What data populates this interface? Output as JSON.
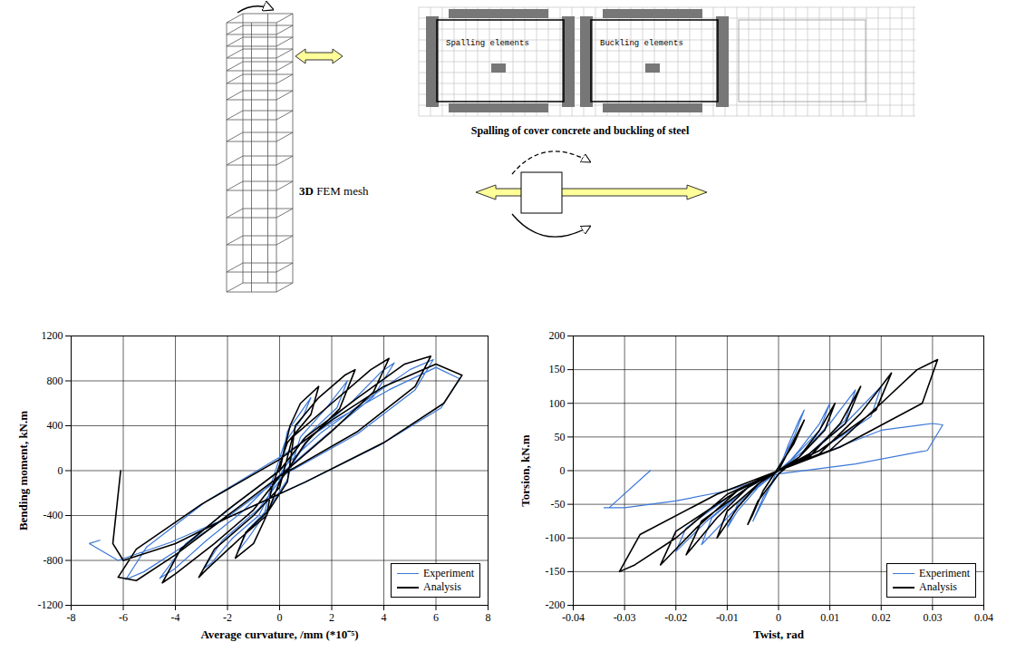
{
  "diagram": {
    "mesh_label": "3D FEM mesh",
    "section": {
      "caption": "Spalling of cover concrete and buckling of steel",
      "labels": [
        "Spalling elements",
        "Buckling elements"
      ]
    }
  },
  "chart_data": [
    {
      "type": "line",
      "xlabel": "Average curvature, /mm (*10⁻⁵)",
      "ylabel": "Bending moment, kN.m",
      "xlim": [
        -8,
        8
      ],
      "ylim": [
        -1200,
        1200
      ],
      "xticks": [
        -8,
        -6,
        -4,
        -2,
        0,
        2,
        4,
        6,
        8
      ],
      "yticks": [
        -1200,
        -800,
        -400,
        0,
        400,
        800,
        1200
      ],
      "grid": true,
      "legend": "lower right",
      "series": [
        {
          "name": "Experiment",
          "color": "#3c78d8",
          "x": [
            0,
            0.3,
            0.6,
            1.2,
            0.9,
            0.2,
            -0.3,
            -0.6,
            -1.2,
            -1.6,
            -1.2,
            -0.4,
            0.3,
            0.8,
            1.8,
            2.6,
            2.2,
            0.9,
            -0.1,
            -0.8,
            -1.8,
            -2.6,
            -2.9,
            -2.2,
            -0.8,
            0.2,
            1.2,
            2.8,
            3.9,
            4.4,
            3.6,
            1.8,
            -0.1,
            -1.4,
            -2.8,
            -4,
            -4.6,
            -3.6,
            -1.8,
            0.1,
            1.6,
            3.4,
            5,
            5.9,
            5.2,
            3,
            0.3,
            -1.8,
            -3.6,
            -5.2,
            -5.9,
            -5.1,
            -2.8,
            0,
            2,
            4.2,
            6,
            6.9,
            6.2,
            3.8,
            1,
            -2,
            -4.2,
            -6.2,
            -7.3,
            -6.9
          ],
          "values": [
            0,
            350,
            450,
            650,
            480,
            250,
            -100,
            -400,
            -600,
            -720,
            -520,
            -330,
            -80,
            300,
            560,
            800,
            560,
            280,
            -80,
            -400,
            -600,
            -820,
            -870,
            -620,
            -340,
            -30,
            300,
            620,
            880,
            960,
            660,
            320,
            -60,
            -360,
            -620,
            -870,
            -960,
            -650,
            -320,
            20,
            340,
            640,
            900,
            990,
            720,
            330,
            -20,
            -380,
            -660,
            -900,
            -970,
            -680,
            -270,
            120,
            430,
            720,
            920,
            820,
            560,
            220,
            -100,
            -420,
            -640,
            -800,
            -650,
            -620
          ]
        },
        {
          "name": "Analysis",
          "color": "#000000",
          "x": [
            0,
            0.4,
            0.8,
            1.5,
            1.2,
            0.3,
            -0.3,
            -0.5,
            -1,
            -1.7,
            -1.3,
            -0.4,
            0.3,
            0.6,
            1.5,
            2.5,
            2.9,
            2.3,
            1,
            0,
            -0.5,
            -1.5,
            -2.8,
            -3.1,
            -2.5,
            -1,
            0,
            0.5,
            2,
            3.5,
            4.2,
            3.6,
            2,
            0,
            -1,
            -2.5,
            -4,
            -4.5,
            -3.8,
            -2,
            0,
            1,
            3,
            4.8,
            5.8,
            5.2,
            3,
            0,
            -2,
            -4,
            -5.5,
            -6.2,
            -5.5,
            -3,
            0,
            2,
            4,
            6,
            7,
            6.3,
            4,
            1,
            -2,
            -4,
            -6,
            -6.4,
            -6.1
          ],
          "values": [
            0,
            400,
            600,
            750,
            500,
            250,
            -150,
            -400,
            -650,
            -780,
            -550,
            -350,
            -100,
            400,
            650,
            850,
            900,
            550,
            250,
            -100,
            -400,
            -600,
            -880,
            -950,
            -700,
            -400,
            -150,
            300,
            600,
            900,
            1000,
            700,
            350,
            -50,
            -350,
            -650,
            -920,
            -1000,
            -700,
            -350,
            0,
            300,
            650,
            950,
            1020,
            750,
            350,
            -50,
            -400,
            -750,
            -980,
            -950,
            -700,
            -300,
            100,
            450,
            750,
            950,
            850,
            600,
            250,
            -100,
            -420,
            -650,
            -800,
            -650,
            0
          ]
        }
      ]
    },
    {
      "type": "line",
      "xlabel": "Twist, rad",
      "ylabel": "Torsion, kN.m",
      "xlim": [
        -0.04,
        0.04
      ],
      "ylim": [
        -200,
        200
      ],
      "xticks": [
        -0.04,
        -0.03,
        -0.02,
        -0.01,
        0,
        0.01,
        0.02,
        0.03,
        0.04
      ],
      "yticks": [
        -200,
        -150,
        -100,
        -50,
        0,
        50,
        100,
        150,
        200
      ],
      "grid": true,
      "legend": "lower right",
      "series": [
        {
          "name": "Experiment",
          "color": "#3c78d8",
          "x": [
            0,
            0.002,
            0.004,
            0.005,
            0.003,
            0,
            -0.002,
            -0.004,
            -0.005,
            -0.003,
            0,
            0.004,
            0.008,
            0.01,
            0.008,
            0.003,
            0,
            -0.004,
            -0.008,
            -0.01,
            -0.008,
            -0.003,
            0,
            0.005,
            0.01,
            0.015,
            0.013,
            0.006,
            0,
            -0.005,
            -0.01,
            -0.015,
            -0.013,
            -0.006,
            0,
            0.006,
            0.013,
            0.02,
            0.018,
            0.008,
            0,
            -0.007,
            -0.014,
            -0.02,
            -0.018,
            -0.008,
            0,
            0.01,
            0.02,
            0.03,
            0.032,
            0.029,
            0.015,
            0,
            -0.01,
            -0.02,
            -0.03,
            -0.034,
            -0.033,
            -0.025
          ],
          "values": [
            0,
            40,
            75,
            90,
            50,
            5,
            -30,
            -60,
            -75,
            -40,
            -5,
            30,
            70,
            100,
            60,
            20,
            0,
            -25,
            -60,
            -85,
            -50,
            -15,
            0,
            30,
            70,
            120,
            75,
            25,
            0,
            -30,
            -70,
            -110,
            -70,
            -25,
            0,
            25,
            70,
            125,
            80,
            30,
            0,
            -30,
            -75,
            -120,
            -85,
            -30,
            0,
            30,
            60,
            70,
            68,
            30,
            10,
            -5,
            -30,
            -45,
            -55,
            -55,
            -55,
            0
          ]
        },
        {
          "name": "Analysis",
          "color": "#000000",
          "x": [
            0,
            0.002,
            0.004,
            0.005,
            0.003,
            0,
            -0.003,
            -0.005,
            -0.006,
            -0.004,
            0,
            0.004,
            0.008,
            0.011,
            0.009,
            0.004,
            0,
            -0.004,
            -0.008,
            -0.012,
            -0.01,
            -0.004,
            0,
            0.006,
            0.012,
            0.016,
            0.013,
            0.006,
            0,
            -0.006,
            -0.012,
            -0.018,
            -0.015,
            -0.006,
            0,
            0.008,
            0.016,
            0.022,
            0.019,
            0.008,
            0,
            -0.008,
            -0.016,
            -0.023,
            -0.02,
            -0.008,
            0,
            0.01,
            0.02,
            0.027,
            0.031,
            0.028,
            0.012,
            0,
            -0.01,
            -0.02,
            -0.028,
            -0.031,
            -0.027,
            -0.012,
            0
          ],
          "values": [
            0,
            30,
            60,
            75,
            40,
            5,
            -30,
            -65,
            -80,
            -45,
            -5,
            20,
            60,
            100,
            60,
            20,
            0,
            -20,
            -55,
            -100,
            -60,
            -20,
            0,
            20,
            70,
            125,
            70,
            25,
            0,
            -25,
            -70,
            -125,
            -75,
            -25,
            0,
            25,
            85,
            145,
            90,
            30,
            0,
            -30,
            -85,
            -140,
            -90,
            -30,
            0,
            30,
            100,
            150,
            165,
            100,
            35,
            0,
            -35,
            -100,
            -140,
            -150,
            -95,
            -35,
            0
          ]
        }
      ]
    }
  ]
}
